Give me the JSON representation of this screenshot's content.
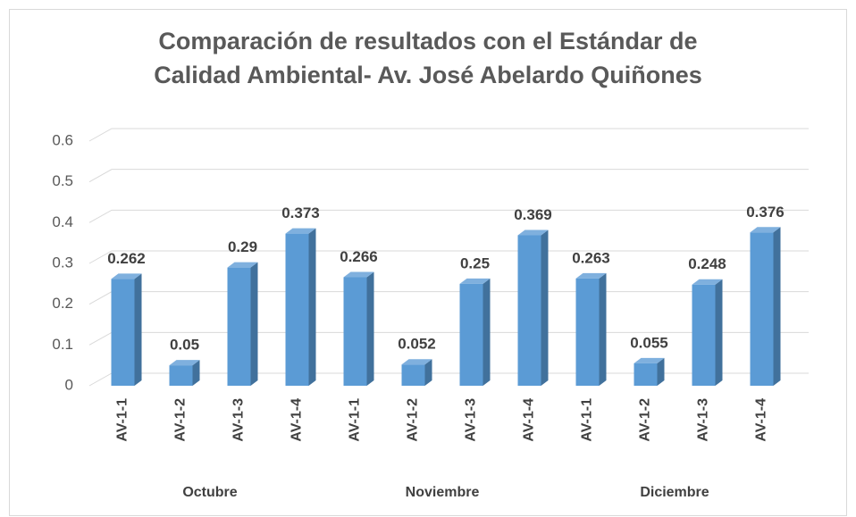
{
  "chart_data": {
    "type": "bar3d",
    "title": "Comparación de resultados con el Estándar de Calidad Ambiental- Av. José Abelardo Quiñones",
    "categories": [
      "AV-1-1",
      "AV-1-2",
      "AV-1-3",
      "AV-1-4",
      "AV-1-1",
      "AV-1-2",
      "AV-1-3",
      "AV-1-4",
      "AV-1-1",
      "AV-1-2",
      "AV-1-3",
      "AV-1-4"
    ],
    "groups": [
      "Octubre",
      "Noviembre",
      "Diciembre"
    ],
    "values": [
      0.262,
      0.05,
      0.29,
      0.373,
      0.266,
      0.052,
      0.25,
      0.369,
      0.263,
      0.055,
      0.248,
      0.376
    ],
    "color": "#5b9bd5",
    "ylim": [
      0,
      0.6
    ],
    "yticks": [
      0,
      0.1,
      0.2,
      0.3,
      0.4,
      0.5,
      0.6
    ],
    "grid": true
  }
}
